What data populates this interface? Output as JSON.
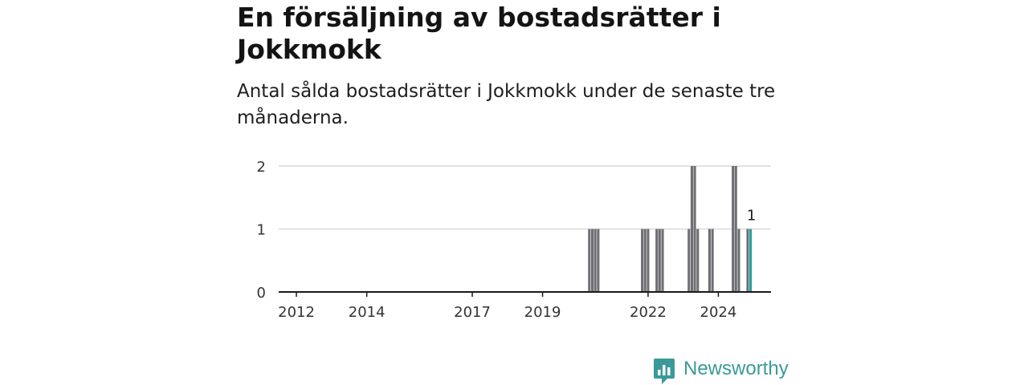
{
  "title": "En försäljning av bostadsrätter i Jokkmokk",
  "subtitle": "Antal sålda bostadsrätter i Jokkmokk under de senaste tre månaderna.",
  "brand": {
    "name": "Newsworthy",
    "color": "#3a9a99",
    "icon": "newsworthy-logo-icon"
  },
  "colors": {
    "bar": "#6e6e73",
    "highlight": "#24a39b",
    "grid": "#d9d9d9",
    "axis": "#1a1a1a",
    "tick_text": "#333333"
  },
  "chart_data": {
    "type": "bar",
    "x_type": "date",
    "ylim": [
      0,
      2
    ],
    "xlim": [
      "2011-07-01",
      "2025-07-01"
    ],
    "y_ticks": [
      0,
      1,
      2
    ],
    "x_ticks": [
      "2012",
      "2014",
      "2017",
      "2019",
      "2022",
      "2024"
    ],
    "x_tick_dates": [
      "2012-01-01",
      "2014-01-01",
      "2017-01-01",
      "2019-01-01",
      "2022-01-01",
      "2024-01-01"
    ],
    "grid": true,
    "series": [
      {
        "values": [
          {
            "x": "2020-05-01",
            "y": 1
          },
          {
            "x": "2020-06-01",
            "y": 1
          },
          {
            "x": "2020-07-01",
            "y": 1
          },
          {
            "x": "2020-08-01",
            "y": 1
          },
          {
            "x": "2021-11-01",
            "y": 1
          },
          {
            "x": "2021-12-01",
            "y": 1
          },
          {
            "x": "2022-01-01",
            "y": 1
          },
          {
            "x": "2022-04-01",
            "y": 1
          },
          {
            "x": "2022-05-01",
            "y": 1
          },
          {
            "x": "2022-06-01",
            "y": 1
          },
          {
            "x": "2023-03-01",
            "y": 1
          },
          {
            "x": "2023-04-01",
            "y": 2
          },
          {
            "x": "2023-05-01",
            "y": 2
          },
          {
            "x": "2023-06-01",
            "y": 1
          },
          {
            "x": "2023-10-01",
            "y": 1
          },
          {
            "x": "2023-11-01",
            "y": 1
          },
          {
            "x": "2024-06-01",
            "y": 2
          },
          {
            "x": "2024-07-01",
            "y": 2
          },
          {
            "x": "2024-08-01",
            "y": 1
          },
          {
            "x": "2024-11-01",
            "y": 1
          },
          {
            "x": "2024-12-01",
            "y": 1
          }
        ]
      }
    ],
    "highlight": {
      "x": "2024-12-01",
      "y": 1,
      "label": "1"
    }
  }
}
